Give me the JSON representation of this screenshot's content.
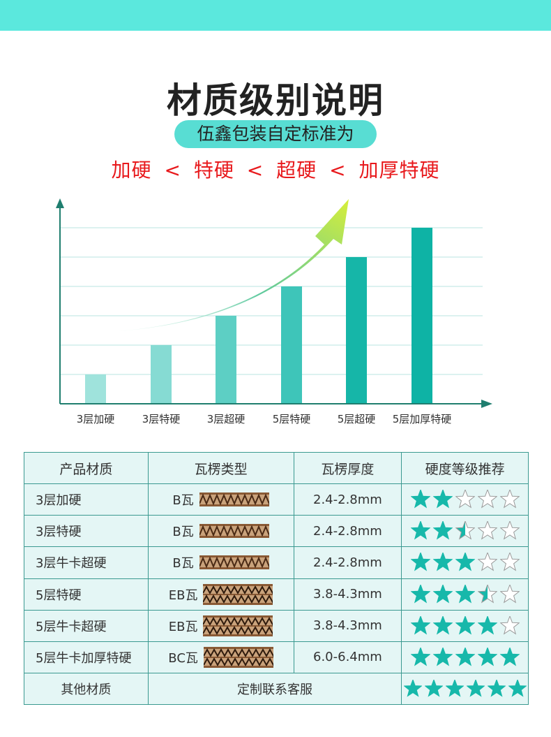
{
  "header": {
    "title": "材质级别说明",
    "subtitle": "伍鑫包装自定标准为",
    "ranking": [
      "加硬",
      "特硬",
      "超硬",
      "加厚特硬"
    ],
    "ranking_separator": "<",
    "colors": {
      "band": "#5be8dd",
      "pill": "#58ddd3",
      "ranking": "#e8191c"
    }
  },
  "chart_data": {
    "type": "bar",
    "categories": [
      "3层加硬",
      "3层特硬",
      "3层超硬",
      "5层特硬",
      "5层超硬",
      "5层加厚特硬"
    ],
    "values": [
      1,
      2,
      3,
      4,
      5,
      6
    ],
    "ylim": [
      0,
      6.6
    ],
    "grid": true,
    "bar_colors": [
      "#9fe3dc",
      "#86dbd3",
      "#5dcfc4",
      "#3ec5b9",
      "#16b6a8",
      "#0eb3a5"
    ],
    "trend_arrow": true
  },
  "table": {
    "headers": [
      "产品材质",
      "瓦楞类型",
      "瓦楞厚度",
      "硬度等级推荐"
    ],
    "rows": [
      {
        "material": "3层加硬",
        "flute": "B瓦",
        "thickness": "2.4-2.8mm",
        "stars": 2,
        "flute_layers": 3
      },
      {
        "material": "3层特硬",
        "flute": "B瓦",
        "thickness": "2.4-2.8mm",
        "stars": 2.5,
        "flute_layers": 3
      },
      {
        "material": "3层牛卡超硬",
        "flute": "B瓦",
        "thickness": "2.4-2.8mm",
        "stars": 3,
        "flute_layers": 3
      },
      {
        "material": "5层特硬",
        "flute": "EB瓦",
        "thickness": "3.8-4.3mm",
        "stars": 3.5,
        "flute_layers": 5
      },
      {
        "material": "5层牛卡超硬",
        "flute": "EB瓦",
        "thickness": "3.8-4.3mm",
        "stars": 4,
        "flute_layers": 5
      },
      {
        "material": "5层牛卡加厚特硬",
        "flute": "BC瓦",
        "thickness": "6.0-6.4mm",
        "stars": 5,
        "flute_layers": 5
      }
    ],
    "other": {
      "material": "其他材质",
      "note": "定制联系客服",
      "stars": 6
    },
    "star_color": "#17b8aa"
  }
}
